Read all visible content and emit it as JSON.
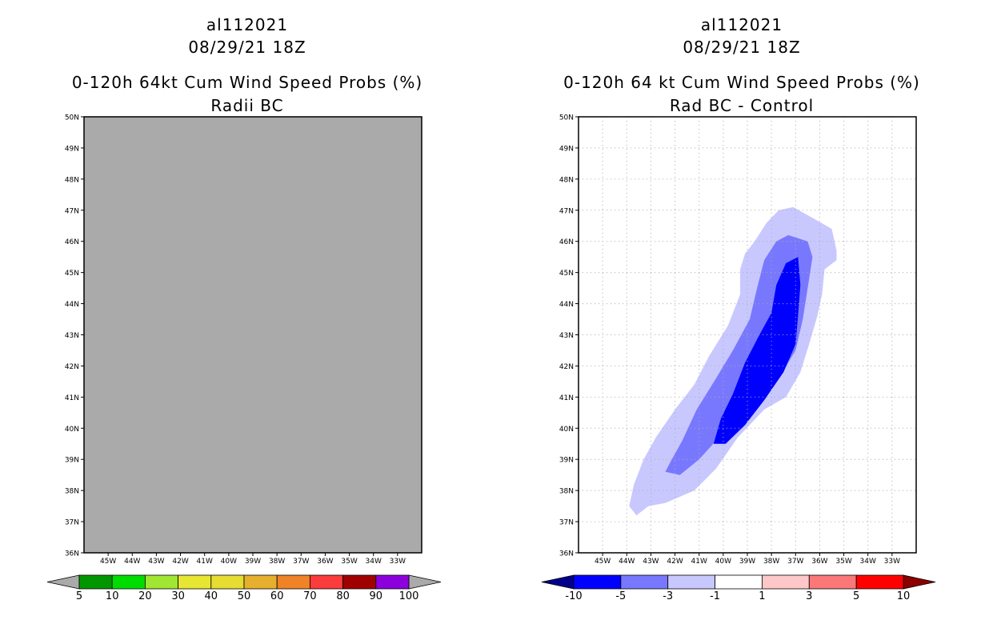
{
  "chart_data": [
    {
      "type": "heatmap",
      "storm_id": "al112021",
      "datetime": "08/29/21 18Z",
      "title": "0-120h 64kt Cum Wind Speed Probs (%)",
      "subtitle": "Radii BC",
      "ylim": [
        36,
        50
      ],
      "xlim": [
        -46,
        -32
      ],
      "lat_ticks": [
        "50N",
        "49N",
        "48N",
        "47N",
        "46N",
        "45N",
        "44N",
        "43N",
        "42N",
        "41N",
        "40N",
        "39N",
        "38N",
        "37N",
        "36N"
      ],
      "lon_ticks": [
        "45W",
        "44W",
        "43W",
        "42W",
        "41W",
        "40W",
        "39W",
        "38W",
        "37W",
        "36W",
        "35W",
        "34W",
        "33W"
      ],
      "gridlines": false,
      "field_fill": "#aaaaaa",
      "field_description": "all values below 5%",
      "colorbar": {
        "labels": [
          "5",
          "10",
          "20",
          "30",
          "40",
          "50",
          "60",
          "70",
          "80",
          "90",
          "100"
        ],
        "colors": [
          "#009600",
          "#00dc00",
          "#a0e632",
          "#e6e633",
          "#e6dc32",
          "#e6af2d",
          "#f08228",
          "#fa3c3c",
          "#a00000",
          "#8c00dc"
        ],
        "under_color": "#aaaaaa",
        "over_color": "#aaaaaa"
      }
    },
    {
      "type": "heatmap",
      "storm_id": "al112021",
      "datetime": "08/29/21 18Z",
      "title": "0-120h 64 kt Cum Wind Speed Probs (%)",
      "subtitle": "Rad BC - Control",
      "ylim": [
        36,
        50
      ],
      "xlim": [
        -46,
        -32
      ],
      "lat_ticks": [
        "50N",
        "49N",
        "48N",
        "47N",
        "46N",
        "45N",
        "44N",
        "43N",
        "42N",
        "41N",
        "40N",
        "39N",
        "38N",
        "37N",
        "36N"
      ],
      "lon_ticks": [
        "45W",
        "44W",
        "43W",
        "42W",
        "41W",
        "40W",
        "39W",
        "38W",
        "37W",
        "36W",
        "35W",
        "34W",
        "33W"
      ],
      "gridlines": true,
      "contours": [
        {
          "level": "-1 to -3",
          "color": "#c8c8ff",
          "lonlat": [
            [
              -43.1,
              37.5
            ],
            [
              -42.4,
              37.6
            ],
            [
              -41.2,
              38.0
            ],
            [
              -40.3,
              38.7
            ],
            [
              -39.4,
              39.7
            ],
            [
              -38.3,
              40.6
            ],
            [
              -37.4,
              41.0
            ],
            [
              -36.8,
              41.8
            ],
            [
              -36.4,
              42.8
            ],
            [
              -36.1,
              43.6
            ],
            [
              -35.9,
              44.3
            ],
            [
              -35.8,
              45.1
            ],
            [
              -35.3,
              45.4
            ],
            [
              -35.3,
              45.7
            ],
            [
              -35.5,
              46.4
            ],
            [
              -36.4,
              46.8
            ],
            [
              -37.1,
              47.1
            ],
            [
              -37.7,
              47.0
            ],
            [
              -38.2,
              46.6
            ],
            [
              -38.7,
              46.0
            ],
            [
              -39.1,
              45.6
            ],
            [
              -39.3,
              45.1
            ],
            [
              -39.3,
              44.3
            ],
            [
              -39.8,
              43.3
            ],
            [
              -40.6,
              42.3
            ],
            [
              -41.2,
              41.4
            ],
            [
              -42.0,
              40.6
            ],
            [
              -42.8,
              39.7
            ],
            [
              -43.3,
              39.0
            ],
            [
              -43.7,
              38.2
            ],
            [
              -43.9,
              37.5
            ],
            [
              -43.6,
              37.2
            ]
          ]
        },
        {
          "level": "-3 to -5",
          "color": "#7878ff",
          "lonlat": [
            [
              -41.8,
              38.5
            ],
            [
              -41.0,
              39.0
            ],
            [
              -40.3,
              39.6
            ],
            [
              -39.3,
              40.2
            ],
            [
              -38.5,
              40.9
            ],
            [
              -37.7,
              41.6
            ],
            [
              -37.0,
              42.5
            ],
            [
              -36.7,
              43.5
            ],
            [
              -36.5,
              44.5
            ],
            [
              -36.3,
              45.5
            ],
            [
              -36.5,
              46.0
            ],
            [
              -37.3,
              46.2
            ],
            [
              -37.8,
              46.0
            ],
            [
              -38.3,
              45.4
            ],
            [
              -38.6,
              44.5
            ],
            [
              -38.9,
              43.5
            ],
            [
              -39.6,
              42.5
            ],
            [
              -40.3,
              41.6
            ],
            [
              -41.1,
              40.6
            ],
            [
              -41.7,
              39.6
            ],
            [
              -42.2,
              38.9
            ],
            [
              -42.4,
              38.6
            ]
          ]
        },
        {
          "level": "< -5",
          "color": "#0000ff",
          "lonlat": [
            [
              -39.9,
              39.5
            ],
            [
              -39.1,
              40.1
            ],
            [
              -38.3,
              40.9
            ],
            [
              -37.5,
              41.8
            ],
            [
              -37.0,
              42.7
            ],
            [
              -36.9,
              43.6
            ],
            [
              -36.8,
              44.6
            ],
            [
              -36.9,
              45.5
            ],
            [
              -37.4,
              45.3
            ],
            [
              -37.8,
              44.6
            ],
            [
              -38.0,
              43.7
            ],
            [
              -38.5,
              43.0
            ],
            [
              -39.1,
              42.1
            ],
            [
              -39.6,
              41.1
            ],
            [
              -40.1,
              40.3
            ],
            [
              -40.4,
              39.5
            ]
          ]
        }
      ],
      "colorbar": {
        "labels": [
          "-10",
          "-5",
          "-3",
          "-1",
          "1",
          "3",
          "5",
          "10"
        ],
        "colors": [
          "#0000ff",
          "#7878ff",
          "#c8c8ff",
          "#ffffff",
          "#ffc8c8",
          "#fa7878",
          "#ff0000"
        ],
        "under_color": "#00008c",
        "over_color": "#8c0000"
      }
    }
  ]
}
